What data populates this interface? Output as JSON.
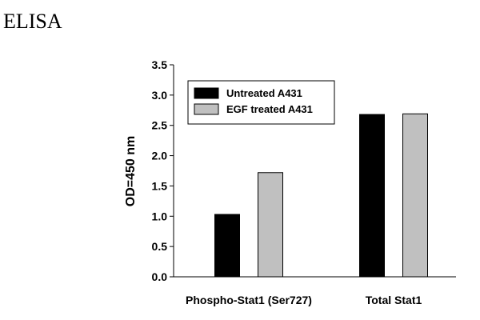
{
  "page": {
    "heading": "ELISA"
  },
  "chart_data": {
    "type": "bar",
    "title": "",
    "xlabel": "",
    "ylabel": "OD=450 nm",
    "ylim": [
      0,
      3.5
    ],
    "yticks": [
      "0.0",
      "0.5",
      "1.0",
      "1.5",
      "2.0",
      "2.5",
      "3.0",
      "3.5"
    ],
    "categories": [
      "Phospho-Stat1 (Ser727)",
      "Total Stat1"
    ],
    "series": [
      {
        "name": "Untreated A431",
        "color": "#000000",
        "values": [
          1.03,
          2.68
        ]
      },
      {
        "name": "EGF treated A431",
        "color": "#c0c0c0",
        "values": [
          1.72,
          2.69
        ]
      }
    ],
    "legend": "top-left",
    "grid": false
  }
}
